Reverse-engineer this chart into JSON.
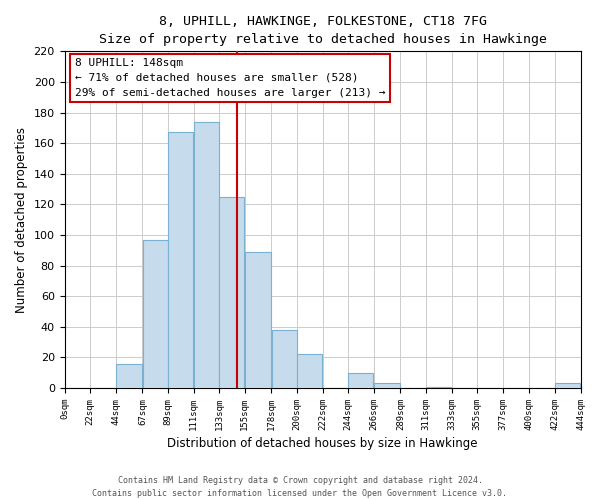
{
  "title": "8, UPHILL, HAWKINGE, FOLKESTONE, CT18 7FG",
  "subtitle": "Size of property relative to detached houses in Hawkinge",
  "xlabel": "Distribution of detached houses by size in Hawkinge",
  "ylabel": "Number of detached properties",
  "bin_edges": [
    0,
    22,
    44,
    67,
    89,
    111,
    133,
    155,
    178,
    200,
    222,
    244,
    266,
    289,
    311,
    333,
    355,
    377,
    400,
    422,
    444
  ],
  "bin_counts": [
    0,
    0,
    16,
    97,
    167,
    174,
    125,
    89,
    38,
    22,
    0,
    10,
    3,
    0,
    1,
    0,
    0,
    0,
    0,
    3
  ],
  "tick_labels": [
    "0sqm",
    "22sqm",
    "44sqm",
    "67sqm",
    "89sqm",
    "111sqm",
    "133sqm",
    "155sqm",
    "178sqm",
    "200sqm",
    "222sqm",
    "244sqm",
    "266sqm",
    "289sqm",
    "311sqm",
    "333sqm",
    "355sqm",
    "377sqm",
    "400sqm",
    "422sqm",
    "444sqm"
  ],
  "bar_color": "#c6dcec",
  "bar_edge_color": "#7ab0d0",
  "vline_x": 148,
  "vline_color": "#cc0000",
  "annotation_title": "8 UPHILL: 148sqm",
  "annotation_line1": "← 71% of detached houses are smaller (528)",
  "annotation_line2": "29% of semi-detached houses are larger (213) →",
  "annotation_box_facecolor": "#ffffff",
  "annotation_box_edgecolor": "#cc0000",
  "ylim": [
    0,
    220
  ],
  "yticks": [
    0,
    20,
    40,
    60,
    80,
    100,
    120,
    140,
    160,
    180,
    200,
    220
  ],
  "footer_line1": "Contains HM Land Registry data © Crown copyright and database right 2024.",
  "footer_line2": "Contains public sector information licensed under the Open Government Licence v3.0.",
  "bg_color": "#ffffff",
  "grid_color": "#cccccc"
}
